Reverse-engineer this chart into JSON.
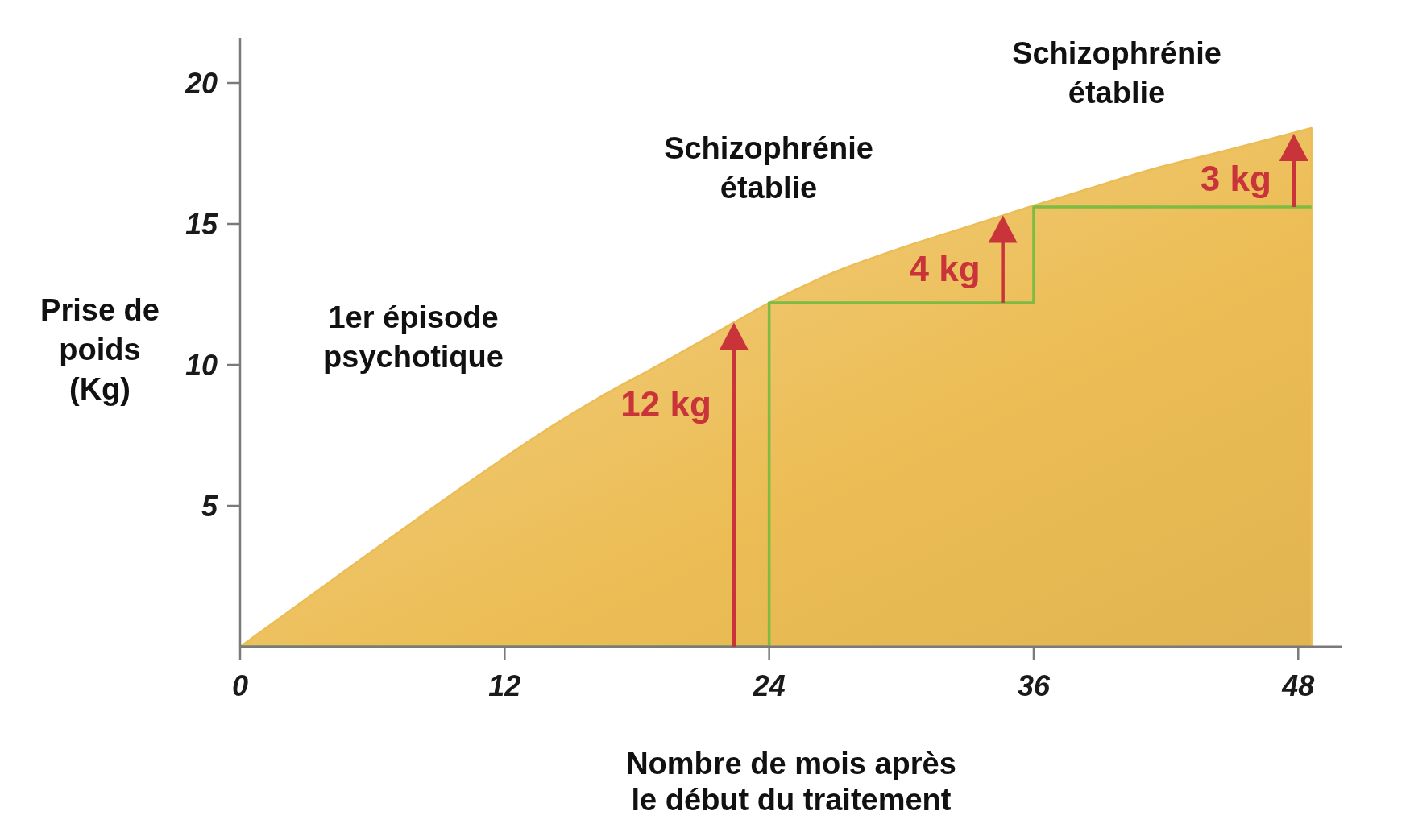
{
  "chart_data": {
    "type": "area",
    "xlabel": "Nombre de mois après\nle début du traitement",
    "ylabel": "Prise de\npoids\n(Kg)",
    "xlim": [
      0,
      50
    ],
    "ylim": [
      0,
      21.6
    ],
    "xticks": [
      0,
      12,
      24,
      36,
      48
    ],
    "yticks": [
      5,
      10,
      15,
      20
    ],
    "series": [
      {
        "color": "#ecbd55",
        "x": [
          0,
          6,
          10.5,
          13.3,
          16.2,
          19,
          21.5,
          24,
          27,
          30.2,
          32.6,
          35.8,
          38.3,
          41.2,
          44.7,
          48.6
        ],
        "values": [
          0,
          3.4,
          5.9,
          7.4,
          8.8,
          10.0,
          11.1,
          12.2,
          13.3,
          14.2,
          14.8,
          15.6,
          16.2,
          16.9,
          17.6,
          18.4
        ]
      },
      {
        "type": "step",
        "color": "#7dbb42",
        "x": [
          0,
          24,
          36,
          48.6
        ],
        "values": [
          0,
          12.2,
          15.6,
          15.6
        ]
      }
    ],
    "annotations": [
      "1er épisode\npsychotique",
      "Schizophrénie\nétablie",
      "Schizophrénie\nétablie",
      {
        "text": "12 kg",
        "x": 22.4,
        "y": 11.5
      },
      {
        "text": "4 kg",
        "x": 34.6,
        "y": 15.3
      },
      {
        "text": "3 kg",
        "x": 47.8,
        "y": 18.2
      }
    ]
  }
}
